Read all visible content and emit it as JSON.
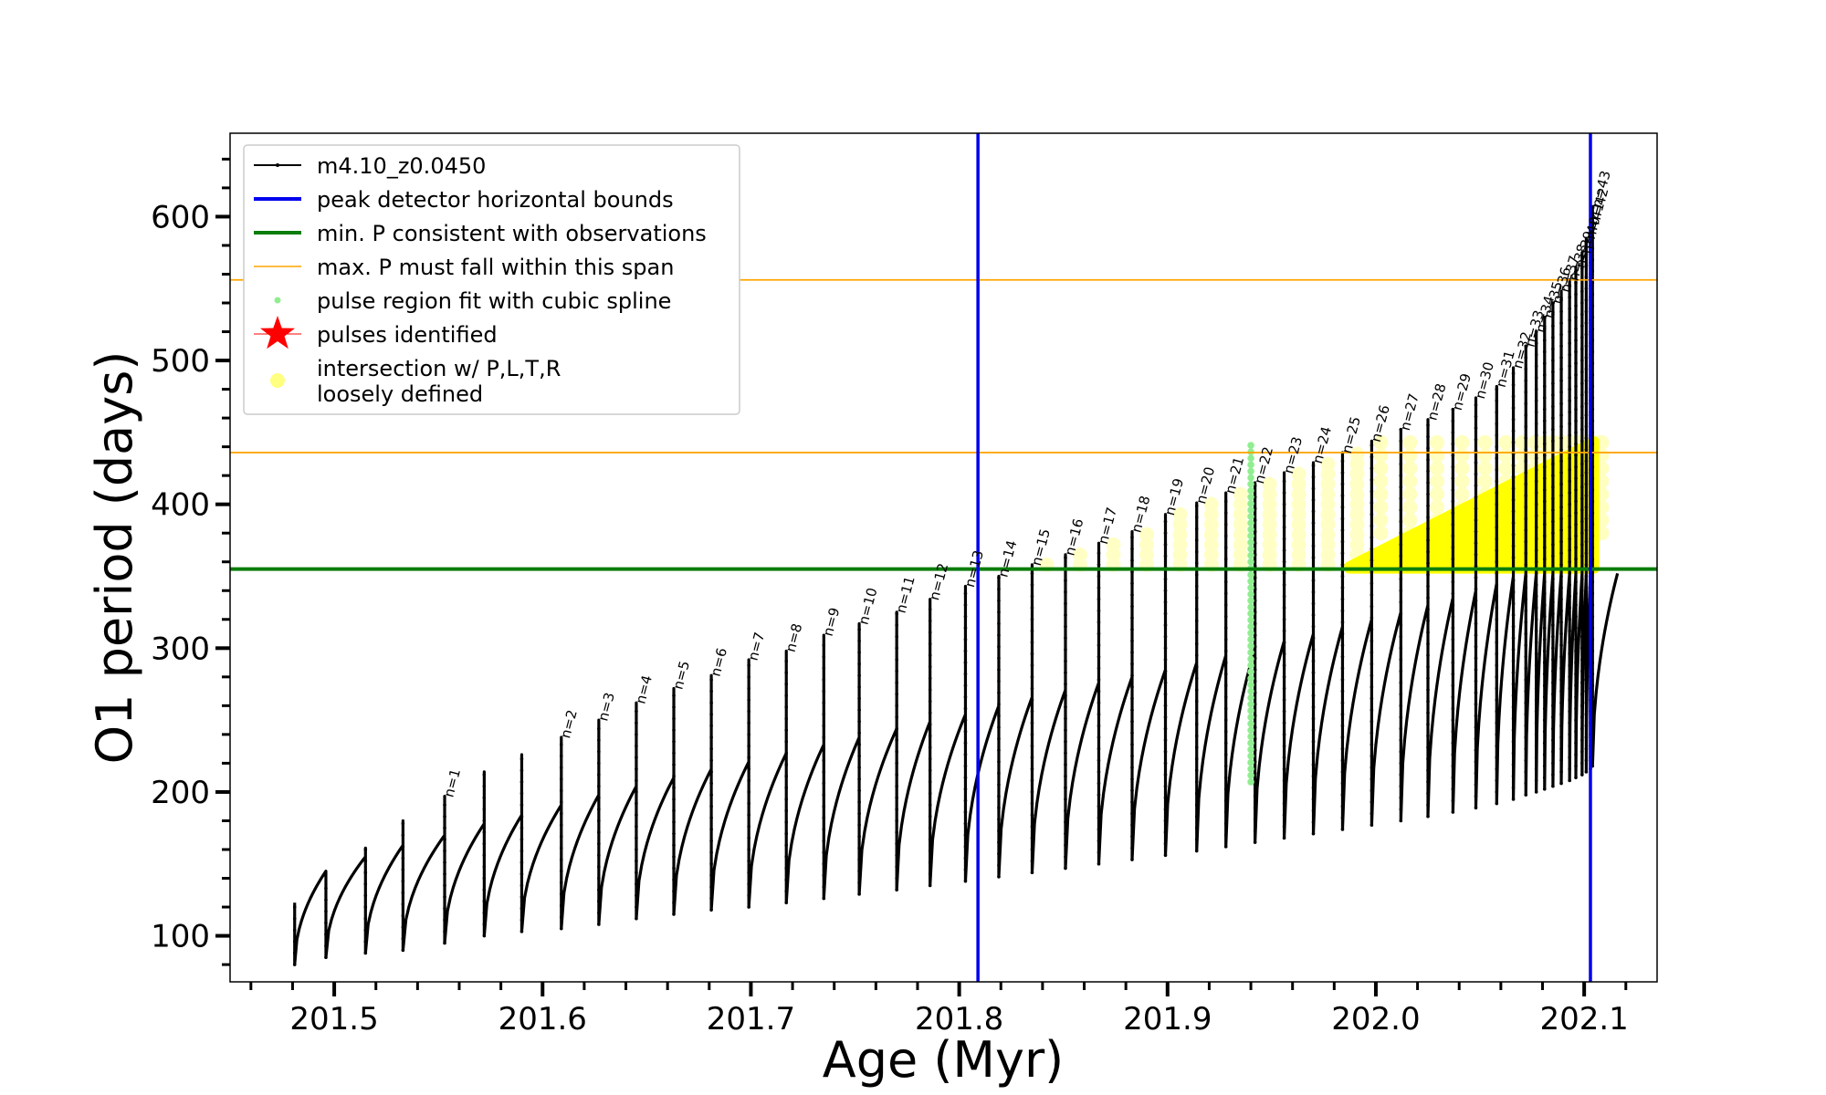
{
  "chart_data": {
    "type": "line",
    "xlabel": "Age (Myr)",
    "ylabel": "O1 period (days)",
    "xlim": [
      201.45,
      202.135
    ],
    "ylim": [
      68,
      658
    ],
    "x_ticks": [
      201.5,
      201.6,
      201.7,
      201.8,
      201.9,
      202.0,
      202.1
    ],
    "x_tick_labels": [
      "201.5",
      "201.6",
      "201.7",
      "201.8",
      "201.9",
      "202.0",
      "202.1"
    ],
    "y_ticks": [
      100,
      200,
      300,
      400,
      500,
      600
    ],
    "y_tick_labels": [
      "100",
      "200",
      "300",
      "400",
      "500",
      "600"
    ],
    "legend_position": "upper-left",
    "legend": [
      {
        "label": "m4.10_z0.0450",
        "style": "black-line-dots",
        "color": "#000000"
      },
      {
        "label": "peak detector horizontal bounds",
        "style": "line",
        "color": "#0000ee"
      },
      {
        "label": "min. P consistent with observations",
        "style": "line",
        "color": "#0a7d0a"
      },
      {
        "label": "max. P must fall within this span",
        "style": "thin-line",
        "color": "#ffa500"
      },
      {
        "label": "pulse region fit with cubic spline",
        "style": "dot",
        "color": "#90ee90"
      },
      {
        "label": "pulses identified",
        "style": "star",
        "color": "#ff0000"
      },
      {
        "label": "intersection w/ P,L,T,R",
        "label2": "loosely defined",
        "style": "big-dot",
        "color": "#ffff80"
      }
    ],
    "vertical_lines": [
      {
        "name": "peak detector left bound",
        "x": 201.809,
        "color": "#0000ee"
      },
      {
        "name": "peak detector right bound",
        "x": 202.103,
        "color": "#0000ee"
      }
    ],
    "horizontal_lines": [
      {
        "name": "min. P consistent with observations",
        "y": 355,
        "color": "#0a7d0a"
      },
      {
        "name": "max. P span upper",
        "y": 556,
        "color": "#ffa500"
      },
      {
        "name": "max. P span lower",
        "y": 436,
        "color": "#ffa500"
      }
    ],
    "spline_region": {
      "x": 201.94,
      "y_min": 207,
      "y_max": 444,
      "color": "#90ee90"
    },
    "dense_yellow_region": {
      "x_start": 201.987,
      "x_end": 202.105,
      "y_bottom": 355,
      "y_top_start": 357,
      "y_top_end": 444,
      "color": "#ffff00"
    },
    "cycles": [
      {
        "x": 201.481,
        "peak": 123,
        "min": 80,
        "end": 145
      },
      {
        "x": 201.496,
        "peak": 136,
        "min": 85,
        "end": 155
      },
      {
        "x": 201.515,
        "peak": 161,
        "min": 88,
        "end": 163
      },
      {
        "x": 201.533,
        "peak": 180,
        "min": 90,
        "end": 170
      },
      {
        "x": 201.553,
        "peak": 197,
        "min": 95,
        "end": 178,
        "label": "n=1"
      },
      {
        "x": 201.572,
        "peak": 214,
        "min": 100,
        "end": 184
      },
      {
        "x": 201.59,
        "peak": 226,
        "min": 103,
        "end": 191
      },
      {
        "x": 201.609,
        "peak": 238,
        "min": 105,
        "end": 198,
        "label": "n=2"
      },
      {
        "x": 201.627,
        "peak": 250,
        "min": 108,
        "end": 204,
        "label": "n=3"
      },
      {
        "x": 201.645,
        "peak": 262,
        "min": 112,
        "end": 210,
        "label": "n=4"
      },
      {
        "x": 201.663,
        "peak": 272,
        "min": 115,
        "end": 216,
        "label": "n=5"
      },
      {
        "x": 201.681,
        "peak": 281,
        "min": 118,
        "end": 221,
        "label": "n=6"
      },
      {
        "x": 201.699,
        "peak": 292,
        "min": 120,
        "end": 227,
        "label": "n=7"
      },
      {
        "x": 201.717,
        "peak": 298,
        "min": 123,
        "end": 233,
        "label": "n=8"
      },
      {
        "x": 201.735,
        "peak": 309,
        "min": 126,
        "end": 238,
        "label": "n=9"
      },
      {
        "x": 201.752,
        "peak": 317,
        "min": 129,
        "end": 244,
        "label": "n=10"
      },
      {
        "x": 201.77,
        "peak": 325,
        "min": 132,
        "end": 249,
        "label": "n=11"
      },
      {
        "x": 201.786,
        "peak": 334,
        "min": 135,
        "end": 254,
        "label": "n=12"
      },
      {
        "x": 201.803,
        "peak": 343,
        "min": 138,
        "end": 260,
        "label": "n=13"
      },
      {
        "x": 201.819,
        "peak": 350,
        "min": 141,
        "end": 266,
        "label": "n=14"
      },
      {
        "x": 201.835,
        "peak": 358,
        "min": 144,
        "end": 271,
        "label": "n=15"
      },
      {
        "x": 201.851,
        "peak": 365,
        "min": 147,
        "end": 276,
        "label": "n=16"
      },
      {
        "x": 201.867,
        "peak": 373,
        "min": 150,
        "end": 280,
        "label": "n=17"
      },
      {
        "x": 201.883,
        "peak": 381,
        "min": 153,
        "end": 285,
        "label": "n=18"
      },
      {
        "x": 201.899,
        "peak": 393,
        "min": 156,
        "end": 290,
        "label": "n=19"
      },
      {
        "x": 201.914,
        "peak": 401,
        "min": 159,
        "end": 295,
        "label": "n=20"
      },
      {
        "x": 201.928,
        "peak": 408,
        "min": 162,
        "end": 300,
        "label": "n=21"
      },
      {
        "x": 201.942,
        "peak": 415,
        "min": 165,
        "end": 305,
        "label": "n=22"
      },
      {
        "x": 201.956,
        "peak": 422,
        "min": 168,
        "end": 310,
        "label": "n=23"
      },
      {
        "x": 201.97,
        "peak": 429,
        "min": 171,
        "end": 315,
        "label": "n=24"
      },
      {
        "x": 201.984,
        "peak": 436,
        "min": 174,
        "end": 320,
        "label": "n=25"
      },
      {
        "x": 201.998,
        "peak": 444,
        "min": 177,
        "end": 325,
        "label": "n=26"
      },
      {
        "x": 202.012,
        "peak": 452,
        "min": 180,
        "end": 330,
        "label": "n=27"
      },
      {
        "x": 202.025,
        "peak": 459,
        "min": 183,
        "end": 335,
        "label": "n=28"
      },
      {
        "x": 202.037,
        "peak": 466,
        "min": 186,
        "end": 340,
        "label": "n=29"
      },
      {
        "x": 202.048,
        "peak": 474,
        "min": 189,
        "end": 345,
        "label": "n=30"
      },
      {
        "x": 202.058,
        "peak": 482,
        "min": 192,
        "end": 350,
        "label": "n=31"
      },
      {
        "x": 202.066,
        "peak": 495,
        "min": 195,
        "end": 352,
        "label": "n=32"
      },
      {
        "x": 202.072,
        "peak": 510,
        "min": 198,
        "end": 352,
        "label": "n=33"
      },
      {
        "x": 202.077,
        "peak": 520,
        "min": 200,
        "end": 352,
        "label": "n=34"
      },
      {
        "x": 202.081,
        "peak": 530,
        "min": 202,
        "end": 352,
        "label": "n=35"
      },
      {
        "x": 202.085,
        "peak": 540,
        "min": 204,
        "end": 352,
        "label": "n=36"
      },
      {
        "x": 202.089,
        "peak": 548,
        "min": 206,
        "end": 352,
        "label": "n=37"
      },
      {
        "x": 202.093,
        "peak": 556,
        "min": 208,
        "end": 352,
        "label": "n=38"
      },
      {
        "x": 202.096,
        "peak": 565,
        "min": 210,
        "end": 352,
        "label": "n=39"
      },
      {
        "x": 202.099,
        "peak": 575,
        "min": 212,
        "end": 352,
        "label": "n=40"
      },
      {
        "x": 202.101,
        "peak": 585,
        "min": 214,
        "end": 352,
        "label": "n=41"
      },
      {
        "x": 202.103,
        "peak": 595,
        "min": 216,
        "end": 352,
        "label": "n=42"
      },
      {
        "x": 202.104,
        "peak": 607,
        "min": 218,
        "end": 352,
        "label": "n=43"
      }
    ]
  }
}
